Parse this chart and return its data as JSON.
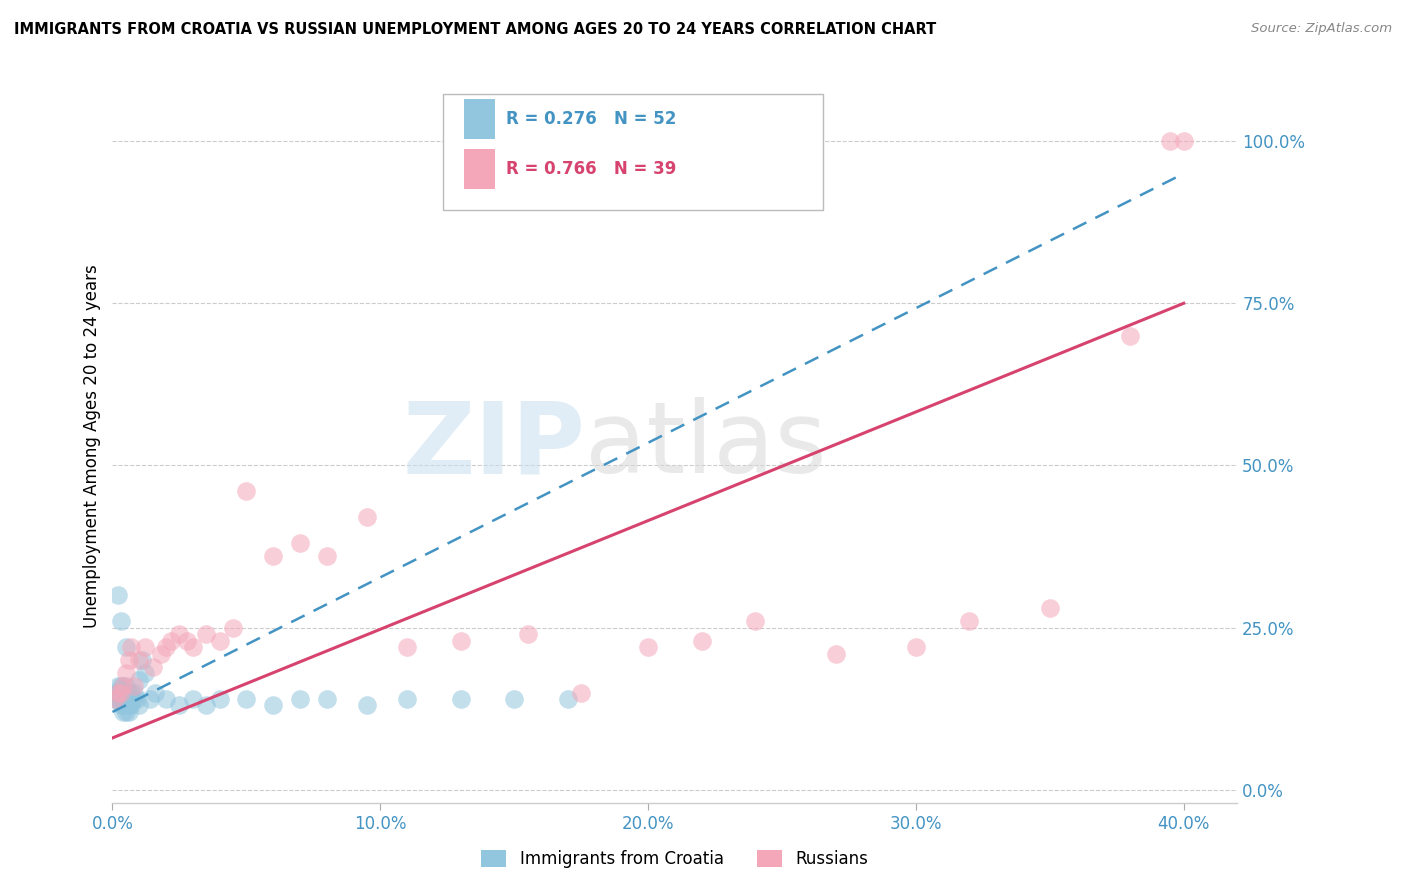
{
  "title": "IMMIGRANTS FROM CROATIA VS RUSSIAN UNEMPLOYMENT AMONG AGES 20 TO 24 YEARS CORRELATION CHART",
  "source": "Source: ZipAtlas.com",
  "ylabel": "Unemployment Among Ages 20 to 24 years",
  "watermark_zip": "ZIP",
  "watermark_atlas": "atlas",
  "xlim": [
    0.0,
    0.42
  ],
  "ylim": [
    -0.02,
    1.08
  ],
  "xtick_labels": [
    "0.0%",
    "10.0%",
    "20.0%",
    "30.0%",
    "40.0%"
  ],
  "xtick_values": [
    0.0,
    0.1,
    0.2,
    0.3,
    0.4
  ],
  "ytick_labels": [
    "100.0%",
    "75.0%",
    "50.0%",
    "25.0%",
    "0.0%"
  ],
  "ytick_values": [
    1.0,
    0.75,
    0.5,
    0.25,
    0.0
  ],
  "legend_blue_label": "Immigrants from Croatia",
  "legend_pink_label": "Russians",
  "blue_R": "0.276",
  "blue_N": "52",
  "pink_R": "0.766",
  "pink_N": "39",
  "blue_color": "#92c5de",
  "pink_color": "#f4a7b9",
  "blue_trend_color": "#4393c3",
  "pink_trend_color": "#d6436e",
  "grid_color": "#cccccc",
  "axis_label_color": "#4393c3",
  "blue_scatter_x": [
    0.001,
    0.001,
    0.002,
    0.002,
    0.002,
    0.003,
    0.003,
    0.003,
    0.003,
    0.004,
    0.004,
    0.004,
    0.004,
    0.004,
    0.005,
    0.005,
    0.005,
    0.005,
    0.005,
    0.006,
    0.006,
    0.006,
    0.006,
    0.007,
    0.007,
    0.007,
    0.008,
    0.008,
    0.009,
    0.01,
    0.01,
    0.011,
    0.012,
    0.014,
    0.016,
    0.02,
    0.025,
    0.03,
    0.035,
    0.04,
    0.05,
    0.06,
    0.07,
    0.08,
    0.095,
    0.11,
    0.13,
    0.15,
    0.17,
    0.002,
    0.003,
    0.005
  ],
  "blue_scatter_y": [
    0.15,
    0.14,
    0.15,
    0.14,
    0.16,
    0.14,
    0.15,
    0.16,
    0.13,
    0.15,
    0.14,
    0.16,
    0.13,
    0.12,
    0.15,
    0.14,
    0.16,
    0.13,
    0.12,
    0.15,
    0.14,
    0.13,
    0.12,
    0.15,
    0.14,
    0.13,
    0.15,
    0.14,
    0.14,
    0.17,
    0.13,
    0.2,
    0.18,
    0.14,
    0.15,
    0.14,
    0.13,
    0.14,
    0.13,
    0.14,
    0.14,
    0.13,
    0.14,
    0.14,
    0.13,
    0.14,
    0.14,
    0.14,
    0.14,
    0.3,
    0.26,
    0.22
  ],
  "pink_scatter_x": [
    0.001,
    0.002,
    0.003,
    0.004,
    0.005,
    0.006,
    0.007,
    0.008,
    0.01,
    0.012,
    0.015,
    0.018,
    0.02,
    0.022,
    0.025,
    0.028,
    0.03,
    0.035,
    0.04,
    0.045,
    0.05,
    0.06,
    0.07,
    0.08,
    0.095,
    0.11,
    0.13,
    0.155,
    0.175,
    0.2,
    0.22,
    0.24,
    0.27,
    0.3,
    0.32,
    0.35,
    0.38,
    0.395,
    0.4
  ],
  "pink_scatter_y": [
    0.14,
    0.15,
    0.15,
    0.16,
    0.18,
    0.2,
    0.22,
    0.16,
    0.2,
    0.22,
    0.19,
    0.21,
    0.22,
    0.23,
    0.24,
    0.23,
    0.22,
    0.24,
    0.23,
    0.25,
    0.46,
    0.36,
    0.38,
    0.36,
    0.42,
    0.22,
    0.23,
    0.24,
    0.15,
    0.22,
    0.23,
    0.26,
    0.21,
    0.22,
    0.26,
    0.28,
    0.7,
    1.0,
    1.0
  ],
  "blue_trend_x0": 0.0,
  "blue_trend_x1": 0.4,
  "blue_trend_y0": 0.12,
  "blue_trend_y1": 0.95,
  "pink_trend_x0": 0.0,
  "pink_trend_x1": 0.4,
  "pink_trend_y0": 0.08,
  "pink_trend_y1": 0.75
}
